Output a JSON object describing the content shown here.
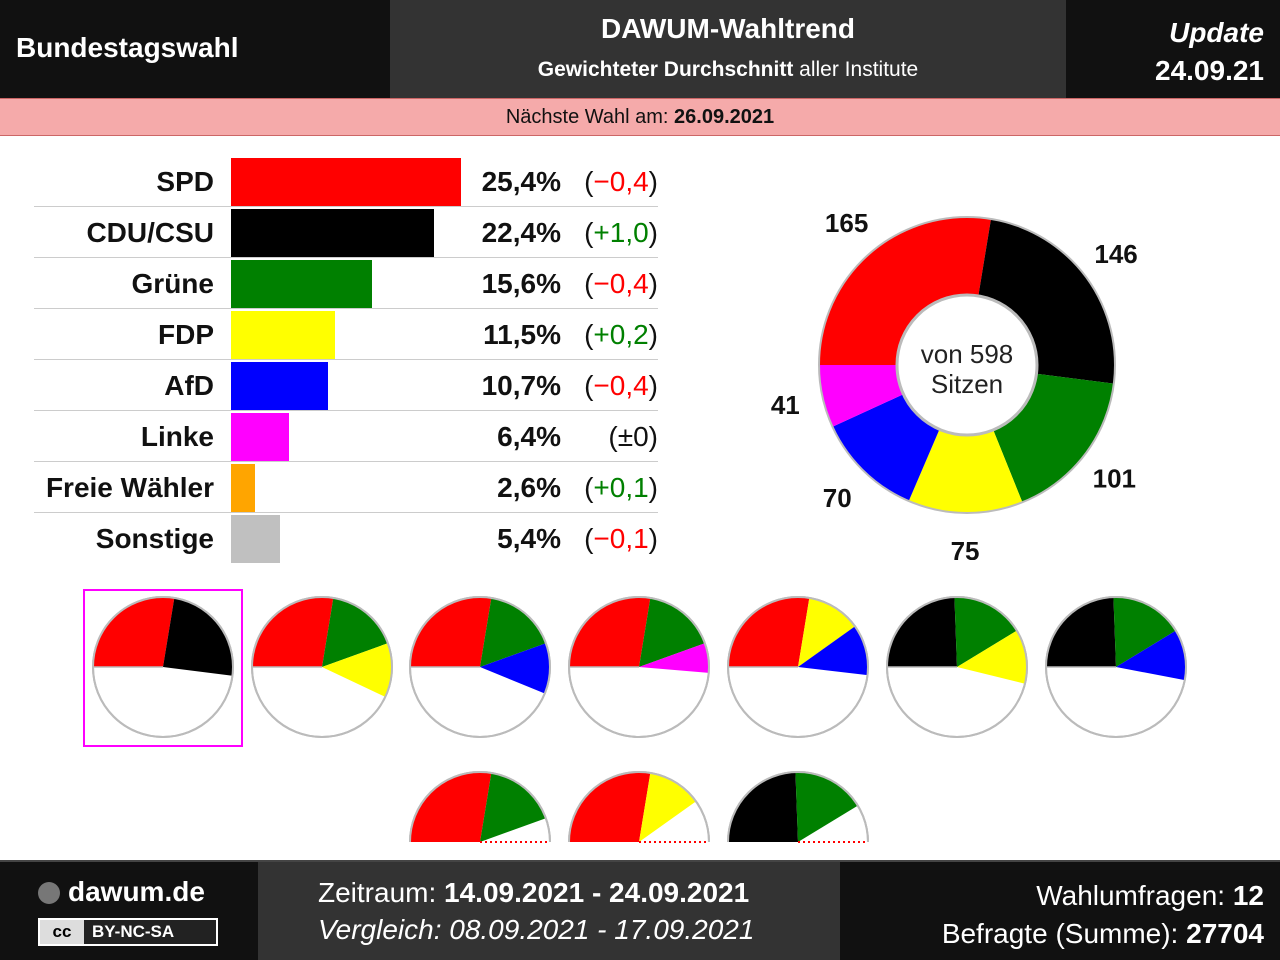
{
  "header": {
    "left_title": "Bundestagswahl",
    "title": "DAWUM-Wahltrend",
    "subtitle_bold": "Gewichteter Durchschnitt",
    "subtitle_rest": " aller Institute",
    "update_label": "Update",
    "update_date": "24.09.21"
  },
  "next_election": {
    "label": "Nächste Wahl am: ",
    "date": "26.09.2021"
  },
  "colors": {
    "SPD": "#ff0000",
    "CDU/CSU": "#000000",
    "Grüne": "#008000",
    "FDP": "#ffff00",
    "AfD": "#0000ff",
    "Linke": "#ff00ff",
    "Freie Wähler": "#ffa500",
    "Sonstige": "#c0c0c0",
    "positive": "#008000",
    "negative": "#ff0000",
    "highlight": "#ff00ff"
  },
  "chart_data": [
    {
      "type": "bar",
      "orientation": "horizontal",
      "categories": [
        "SPD",
        "CDU/CSU",
        "Grüne",
        "FDP",
        "AfD",
        "Linke",
        "Freie Wähler",
        "Sonstige"
      ],
      "values": [
        25.4,
        22.4,
        15.6,
        11.5,
        10.7,
        6.4,
        2.6,
        5.4
      ],
      "value_labels": [
        "25,4%",
        "22,4%",
        "15,6%",
        "11,5%",
        "10,7%",
        "6,4%",
        "2,6%",
        "5,4%"
      ],
      "changes": [
        -0.4,
        1.0,
        -0.4,
        0.2,
        -0.4,
        0,
        0.1,
        -0.1
      ],
      "change_labels": [
        "−0,4",
        "+1,0",
        "−0,4",
        "+0,2",
        "−0,4",
        "±0",
        "+0,1",
        "−0,1"
      ]
    },
    {
      "type": "pie",
      "subtype": "half-donut-ring",
      "center_label_1": "von 598",
      "center_label_2": "Sitzen",
      "total": 598,
      "slices": [
        {
          "party": "SPD",
          "seats": 165,
          "label": "165"
        },
        {
          "party": "CDU/CSU",
          "seats": 146,
          "label": "146"
        },
        {
          "party": "Grüne",
          "seats": 101,
          "label": "101"
        },
        {
          "party": "FDP",
          "seats": 75,
          "label": "75"
        },
        {
          "party": "AfD",
          "seats": 70,
          "label": "70"
        },
        {
          "party": "Linke",
          "seats": 41,
          "label": "41"
        }
      ]
    },
    {
      "type": "pie",
      "subtype": "coalition-half-circles",
      "majority_of": 598,
      "coalitions": [
        {
          "parties": [
            "SPD",
            "CDU/CSU"
          ],
          "seats": [
            165,
            146
          ],
          "highlighted": true,
          "full": true
        },
        {
          "parties": [
            "SPD",
            "Grüne",
            "FDP"
          ],
          "seats": [
            165,
            101,
            75
          ],
          "full": true
        },
        {
          "parties": [
            "SPD",
            "Grüne",
            "AfD"
          ],
          "seats": [
            165,
            101,
            70
          ],
          "full": true
        },
        {
          "parties": [
            "SPD",
            "Grüne",
            "Linke"
          ],
          "seats": [
            165,
            101,
            41
          ],
          "full": true
        },
        {
          "parties": [
            "SPD",
            "FDP",
            "AfD"
          ],
          "seats": [
            165,
            75,
            70
          ],
          "full": true
        },
        {
          "parties": [
            "CDU/CSU",
            "Grüne",
            "FDP"
          ],
          "seats": [
            146,
            101,
            75
          ],
          "full": true
        },
        {
          "parties": [
            "CDU/CSU",
            "Grüne",
            "AfD"
          ],
          "seats": [
            146,
            101,
            70
          ],
          "full": true
        },
        {
          "parties": [
            "SPD",
            "Grüne"
          ],
          "seats": [
            165,
            101
          ],
          "full": false
        },
        {
          "parties": [
            "SPD",
            "FDP"
          ],
          "seats": [
            165,
            75
          ],
          "full": false
        },
        {
          "parties": [
            "CDU/CSU",
            "Grüne"
          ],
          "seats": [
            146,
            101
          ],
          "full": false
        }
      ]
    }
  ],
  "footer": {
    "site": "dawum.de",
    "cc_mark": "cc",
    "license": "BY-NC-SA",
    "zeitraum_label": "Zeitraum: ",
    "zeitraum_value": "14.09.2021 - 24.09.2021",
    "vergleich": "Vergleich: 08.09.2021 - 17.09.2021",
    "umfragen_label": "Wahlumfragen: ",
    "umfragen_value": "12",
    "befragte_label": "Befragte (Summe): ",
    "befragte_value": "27704"
  }
}
